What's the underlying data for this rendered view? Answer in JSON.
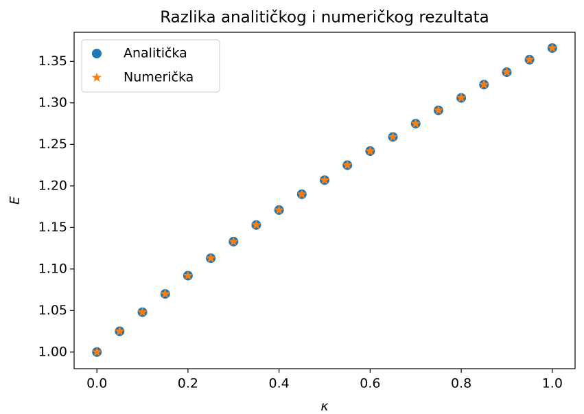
{
  "chart_data": {
    "type": "scatter",
    "title": "Razlika analitičkog i numeričkog rezultata",
    "x_label": "κ",
    "y_label": "E",
    "x": [
      0.0,
      0.05,
      0.1,
      0.15,
      0.2,
      0.25,
      0.3,
      0.35,
      0.4,
      0.45,
      0.5,
      0.55,
      0.6,
      0.65,
      0.7,
      0.75,
      0.8,
      0.85,
      0.9,
      0.95,
      1.0
    ],
    "series": [
      {
        "name": "Analitička",
        "color": "#1f77b4",
        "marker": "circle",
        "values": [
          1.0,
          1.025,
          1.048,
          1.07,
          1.092,
          1.113,
          1.133,
          1.153,
          1.171,
          1.19,
          1.207,
          1.225,
          1.242,
          1.259,
          1.275,
          1.291,
          1.306,
          1.322,
          1.337,
          1.352,
          1.366
        ]
      },
      {
        "name": "Numerička",
        "color": "#ff7f0e",
        "marker": "star",
        "values": [
          1.0,
          1.025,
          1.048,
          1.07,
          1.092,
          1.113,
          1.133,
          1.153,
          1.171,
          1.19,
          1.207,
          1.225,
          1.242,
          1.259,
          1.275,
          1.291,
          1.306,
          1.322,
          1.337,
          1.352,
          1.366
        ]
      }
    ],
    "xlim": [
      -0.05,
      1.05
    ],
    "xticks": [
      {
        "value": 0,
        "label": "0.0"
      },
      0.2,
      0.4,
      0.6,
      0.8,
      {
        "value": 1,
        "label": "1.0"
      }
    ],
    "ylim": [
      0.98,
      1.385
    ],
    "yticks": [
      {
        "value": 1,
        "label": "1.00"
      },
      1.05,
      {
        "value": 1.1,
        "label": "1.10"
      },
      1.15,
      {
        "value": 1.2,
        "label": "1.20"
      },
      1.25,
      {
        "value": 1.3,
        "label": "1.30"
      },
      1.35
    ],
    "legend": "upper left",
    "grid": false
  }
}
